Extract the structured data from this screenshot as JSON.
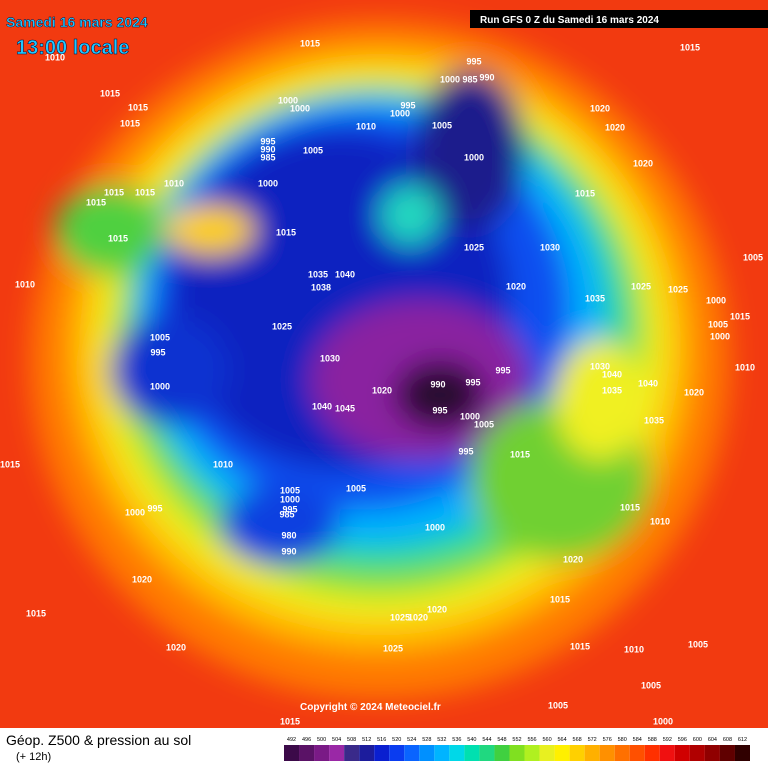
{
  "header": {
    "date": "Samedi 16 mars 2024",
    "local_time": "13:00 locale",
    "run": "Run GFS 0 Z du Samedi 16 mars 2024"
  },
  "footer": {
    "copyright": "Copyright © 2024 Meteociel.fr"
  },
  "legend": {
    "title": "Géop. Z500 & pression au sol",
    "lead": "(+ 12h)",
    "levels": [
      492,
      496,
      500,
      504,
      508,
      512,
      516,
      520,
      524,
      528,
      532,
      536,
      540,
      544,
      548,
      552,
      556,
      560,
      564,
      568,
      572,
      576,
      580,
      584,
      588,
      592,
      596,
      600,
      604,
      608,
      612
    ],
    "colors": [
      "#3c0a49",
      "#5a1266",
      "#7a1a86",
      "#9a28a6",
      "#3a2a8a",
      "#1c1c9c",
      "#0a1fd0",
      "#0a3cf0",
      "#0a64ff",
      "#0090ff",
      "#00b4ff",
      "#00d8e8",
      "#00e0b0",
      "#20d880",
      "#40d040",
      "#80e020",
      "#b0f020",
      "#e8f020",
      "#fff000",
      "#ffd000",
      "#ffb000",
      "#ff9000",
      "#ff7000",
      "#ff5000",
      "#ff3000",
      "#f01010",
      "#d00000",
      "#b00000",
      "#900000",
      "#600000",
      "#300000"
    ]
  },
  "pressure_labels": [
    1015,
    1015,
    1010,
    1015,
    1015,
    1015,
    995,
    1000,
    985,
    990,
    1000,
    1000,
    995,
    1000,
    1010,
    1005,
    1020,
    1020,
    995,
    990,
    985,
    1005,
    1000,
    1020,
    1000,
    1010,
    1015,
    1015,
    1015,
    1015,
    1015,
    1015,
    1025,
    1030,
    1005,
    1035,
    1040,
    1038,
    1020,
    1025,
    1025,
    1010,
    1035,
    1000,
    1005,
    1015,
    1000,
    1025,
    1005,
    995,
    1030,
    1000,
    1030,
    1040,
    1040,
    995,
    990,
    995,
    1020,
    1035,
    1020,
    1010,
    995,
    1000,
    1045,
    1040,
    1005,
    1035,
    995,
    1015,
    1010,
    1015,
    1005,
    1005,
    1000,
    995,
    985,
    1000,
    995,
    1015,
    1010,
    980,
    990,
    1000,
    1020,
    1020,
    1015,
    1015,
    1020,
    1025,
    1020,
    1015,
    1005,
    1010,
    1025,
    1020,
    1005,
    1005,
    1000,
    1015
  ]
}
